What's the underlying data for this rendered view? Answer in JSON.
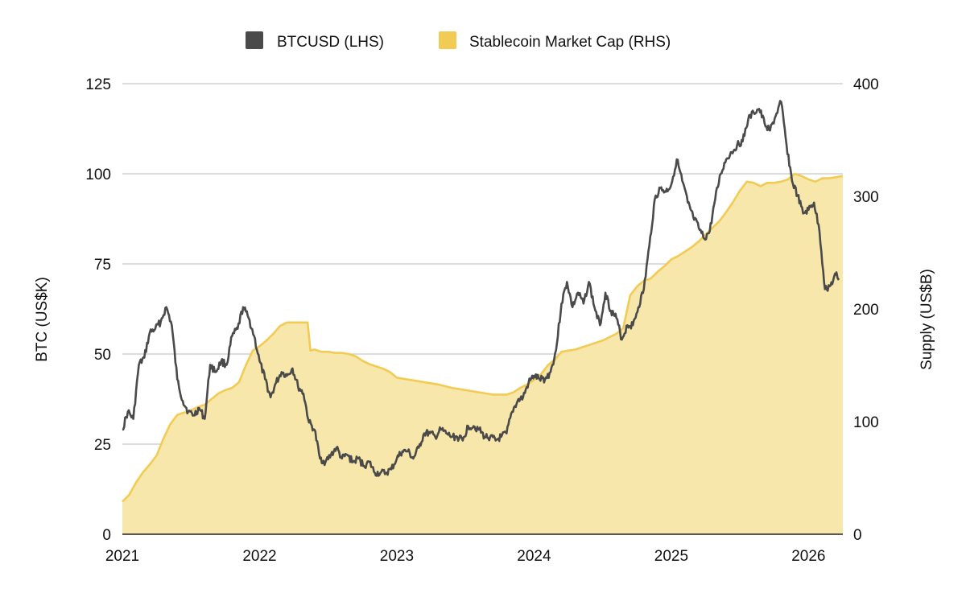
{
  "chart_data": {
    "type": "line",
    "title": "",
    "legend": {
      "position": "top-center",
      "entries": [
        {
          "name": "BTCUSD (LHS)",
          "color": "#4a4a4a"
        },
        {
          "name": "Stablecoin Market Cap (RHS)",
          "color": "#f2cb55"
        }
      ]
    },
    "y_left": {
      "label": "BTC (US$K)",
      "min": 0,
      "max": 125,
      "ticks": [
        "0",
        "25",
        "50",
        "75",
        "100",
        "125"
      ]
    },
    "y_right": {
      "label": "Supply (US$B)",
      "min": 0,
      "max": 400,
      "ticks": [
        "0",
        "100",
        "200",
        "300",
        "400"
      ]
    },
    "x_axis": {
      "label": "",
      "min": 2021.0,
      "max": 2026.25,
      "ticks": [
        "2021",
        "2022",
        "2023",
        "2024",
        "2025",
        "2026"
      ]
    },
    "grid": true,
    "series": [
      {
        "name": "BTCUSD (LHS)",
        "axis": "left",
        "color": "#4a4a4a",
        "area": false,
        "x": [
          2021.0,
          2021.04,
          2021.08,
          2021.12,
          2021.16,
          2021.2,
          2021.24,
          2021.28,
          2021.32,
          2021.36,
          2021.4,
          2021.44,
          2021.48,
          2021.52,
          2021.56,
          2021.6,
          2021.64,
          2021.68,
          2021.72,
          2021.76,
          2021.8,
          2021.84,
          2021.88,
          2021.92,
          2021.96,
          2022.0,
          2022.04,
          2022.08,
          2022.12,
          2022.16,
          2022.2,
          2022.24,
          2022.28,
          2022.32,
          2022.36,
          2022.4,
          2022.44,
          2022.48,
          2022.52,
          2022.56,
          2022.6,
          2022.64,
          2022.68,
          2022.72,
          2022.76,
          2022.8,
          2022.84,
          2022.88,
          2022.92,
          2022.96,
          2023.0,
          2023.04,
          2023.08,
          2023.12,
          2023.16,
          2023.2,
          2023.24,
          2023.28,
          2023.32,
          2023.36,
          2023.4,
          2023.44,
          2023.48,
          2023.52,
          2023.56,
          2023.6,
          2023.64,
          2023.68,
          2023.72,
          2023.76,
          2023.8,
          2023.84,
          2023.88,
          2023.92,
          2023.96,
          2024.0,
          2024.04,
          2024.08,
          2024.12,
          2024.16,
          2024.2,
          2024.24,
          2024.28,
          2024.32,
          2024.36,
          2024.4,
          2024.44,
          2024.48,
          2024.52,
          2024.56,
          2024.6,
          2024.64,
          2024.68,
          2024.72,
          2024.76,
          2024.8,
          2024.84,
          2024.88,
          2024.92,
          2024.96,
          2025.0,
          2025.04,
          2025.08,
          2025.12,
          2025.16,
          2025.2,
          2025.24,
          2025.28,
          2025.32,
          2025.36,
          2025.4,
          2025.44,
          2025.48,
          2025.52,
          2025.56,
          2025.6,
          2025.64,
          2025.68,
          2025.72,
          2025.76,
          2025.8,
          2025.84,
          2025.88,
          2025.92,
          2025.96,
          2026.0,
          2026.04,
          2026.08,
          2026.12,
          2026.16,
          2026.2,
          2026.22
        ],
        "values": [
          29,
          34,
          32,
          47,
          49,
          56,
          57,
          59,
          63,
          58,
          43,
          37,
          34,
          33,
          35,
          32,
          47,
          45,
          48,
          47,
          55,
          57,
          63,
          60,
          55,
          48,
          43,
          38,
          42,
          45,
          44,
          46,
          41,
          39,
          31,
          29,
          21,
          20,
          22,
          24,
          21,
          22,
          20,
          21,
          19,
          20,
          17,
          17,
          17,
          18,
          21,
          23,
          23,
          21,
          24,
          28,
          28,
          27,
          29,
          28,
          27,
          27,
          26,
          30,
          30,
          29,
          27,
          27,
          26,
          27,
          28,
          34,
          37,
          38,
          42,
          44,
          43,
          43,
          45,
          51,
          64,
          70,
          63,
          67,
          64,
          70,
          63,
          58,
          67,
          62,
          60,
          54,
          58,
          58,
          63,
          68,
          80,
          93,
          96,
          95,
          97,
          104,
          98,
          92,
          88,
          85,
          82,
          84,
          93,
          100,
          104,
          106,
          108,
          109,
          115,
          117,
          118,
          114,
          112,
          116,
          120,
          108,
          98,
          94,
          89,
          90,
          92,
          84,
          68,
          69,
          72,
          71
        ]
      },
      {
        "name": "Stablecoin Market Cap (RHS)",
        "axis": "right",
        "color": "#f2cb55",
        "area": true,
        "x": [
          2021.0,
          2021.05,
          2021.1,
          2021.15,
          2021.2,
          2021.25,
          2021.3,
          2021.35,
          2021.4,
          2021.45,
          2021.5,
          2021.55,
          2021.6,
          2021.65,
          2021.7,
          2021.75,
          2021.8,
          2021.85,
          2021.9,
          2021.95,
          2022.0,
          2022.05,
          2022.1,
          2022.15,
          2022.2,
          2022.25,
          2022.3,
          2022.35,
          2022.36,
          2022.37,
          2022.4,
          2022.45,
          2022.5,
          2022.55,
          2022.6,
          2022.65,
          2022.7,
          2022.75,
          2022.8,
          2022.85,
          2022.9,
          2022.95,
          2023.0,
          2023.1,
          2023.2,
          2023.3,
          2023.4,
          2023.5,
          2023.6,
          2023.7,
          2023.75,
          2023.8,
          2023.85,
          2023.9,
          2023.95,
          2024.0,
          2024.05,
          2024.1,
          2024.15,
          2024.2,
          2024.25,
          2024.3,
          2024.35,
          2024.4,
          2024.45,
          2024.5,
          2024.55,
          2024.6,
          2024.65,
          2024.7,
          2024.75,
          2024.8,
          2024.85,
          2024.9,
          2024.95,
          2025.0,
          2025.05,
          2025.1,
          2025.15,
          2025.2,
          2025.25,
          2025.3,
          2025.35,
          2025.4,
          2025.45,
          2025.5,
          2025.55,
          2025.6,
          2025.65,
          2025.7,
          2025.75,
          2025.8,
          2025.85,
          2025.9,
          2025.95,
          2026.0,
          2026.05,
          2026.1,
          2026.15,
          2026.2,
          2026.25
        ],
        "values": [
          29,
          35,
          46,
          55,
          62,
          70,
          85,
          98,
          106,
          108,
          110,
          113,
          115,
          120,
          125,
          128,
          130,
          135,
          150,
          163,
          167,
          172,
          178,
          185,
          188,
          188,
          188,
          188,
          176,
          163,
          164,
          162,
          162,
          161,
          161,
          160,
          158,
          154,
          151,
          149,
          147,
          144,
          139,
          137,
          135,
          133,
          130,
          128,
          126,
          124,
          124,
          124,
          126,
          130,
          133,
          137,
          142,
          150,
          155,
          162,
          163,
          164,
          166,
          168,
          170,
          172,
          175,
          178,
          183,
          212,
          220,
          225,
          227,
          233,
          238,
          244,
          247,
          251,
          255,
          260,
          266,
          272,
          278,
          286,
          295,
          305,
          313,
          312,
          309,
          312,
          312,
          313,
          315,
          320,
          318,
          315,
          313,
          316,
          316,
          317,
          318
        ]
      }
    ]
  }
}
